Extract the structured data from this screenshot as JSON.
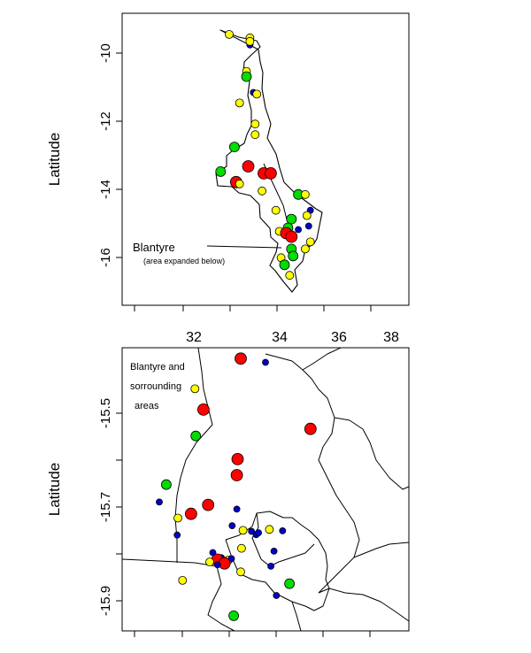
{
  "top_map": {
    "ylabel": "Latitude",
    "y_ticks": [
      "-10",
      "-12",
      "-14",
      "-16"
    ],
    "x_ticks": [
      "32",
      "34",
      "36",
      "38"
    ],
    "callout": "Blantyre",
    "callout_sub": "(area expanded below)"
  },
  "bottom_map": {
    "ylabel": "Latitude",
    "y_ticks": [
      "-15.5",
      "-15.7",
      "-15.9"
    ],
    "annotation_lines": [
      "Blantyre and",
      "sorrounding",
      "areas"
    ]
  },
  "colors": {
    "red": "#ff0000",
    "green": "#00dd00",
    "yellow": "#ffff00",
    "blue": "#0000cc"
  },
  "chart_data": [
    {
      "type": "scatter",
      "title": "",
      "xlabel": "",
      "ylabel": "Latitude",
      "xlim": [
        30.2,
        38.5
      ],
      "ylim": [
        -17.5,
        -9.2
      ],
      "x_ticks": [
        32,
        34,
        36,
        38
      ],
      "y_ticks": [
        -10,
        -12,
        -14,
        -16
      ],
      "points": [
        {
          "lon": 33.9,
          "lat": -9.9,
          "color": "yellow"
        },
        {
          "lon": 33.9,
          "lat": -10.1,
          "color": "blue"
        },
        {
          "lon": 33.9,
          "lat": -10.0,
          "color": "yellow"
        },
        {
          "lon": 33.3,
          "lat": -9.8,
          "color": "yellow"
        },
        {
          "lon": 33.8,
          "lat": -10.85,
          "color": "yellow"
        },
        {
          "lon": 33.8,
          "lat": -11.0,
          "color": "green"
        },
        {
          "lon": 34.0,
          "lat": -11.45,
          "color": "blue"
        },
        {
          "lon": 34.1,
          "lat": -11.5,
          "color": "yellow"
        },
        {
          "lon": 33.6,
          "lat": -11.75,
          "color": "yellow"
        },
        {
          "lon": 34.05,
          "lat": -12.35,
          "color": "yellow"
        },
        {
          "lon": 34.05,
          "lat": -12.65,
          "color": "yellow"
        },
        {
          "lon": 33.45,
          "lat": -13.0,
          "color": "green"
        },
        {
          "lon": 33.85,
          "lat": -13.55,
          "color": "red"
        },
        {
          "lon": 34.3,
          "lat": -13.75,
          "color": "red"
        },
        {
          "lon": 34.5,
          "lat": -13.75,
          "color": "red"
        },
        {
          "lon": 33.05,
          "lat": -13.7,
          "color": "green"
        },
        {
          "lon": 33.5,
          "lat": -14.0,
          "color": "red"
        },
        {
          "lon": 33.6,
          "lat": -14.05,
          "color": "yellow"
        },
        {
          "lon": 34.25,
          "lat": -14.25,
          "color": "yellow"
        },
        {
          "lon": 35.3,
          "lat": -14.35,
          "color": "green"
        },
        {
          "lon": 35.5,
          "lat": -14.35,
          "color": "yellow"
        },
        {
          "lon": 34.65,
          "lat": -14.8,
          "color": "yellow"
        },
        {
          "lon": 35.65,
          "lat": -14.8,
          "color": "blue"
        },
        {
          "lon": 35.55,
          "lat": -14.95,
          "color": "yellow"
        },
        {
          "lon": 35.1,
          "lat": -15.05,
          "color": "green"
        },
        {
          "lon": 35.6,
          "lat": -15.25,
          "color": "blue"
        },
        {
          "lon": 35.0,
          "lat": -15.3,
          "color": "green"
        },
        {
          "lon": 34.75,
          "lat": -15.4,
          "color": "yellow"
        },
        {
          "lon": 34.95,
          "lat": -15.45,
          "color": "red"
        },
        {
          "lon": 35.1,
          "lat": -15.55,
          "color": "red"
        },
        {
          "lon": 35.3,
          "lat": -15.35,
          "color": "blue"
        },
        {
          "lon": 35.65,
          "lat": -15.7,
          "color": "yellow"
        },
        {
          "lon": 35.5,
          "lat": -15.9,
          "color": "yellow"
        },
        {
          "lon": 35.1,
          "lat": -15.9,
          "color": "green"
        },
        {
          "lon": 35.15,
          "lat": -16.1,
          "color": "green"
        },
        {
          "lon": 34.8,
          "lat": -16.15,
          "color": "yellow"
        },
        {
          "lon": 34.9,
          "lat": -16.35,
          "color": "green"
        },
        {
          "lon": 35.05,
          "lat": -16.65,
          "color": "yellow"
        }
      ]
    },
    {
      "type": "scatter",
      "title": "",
      "xlabel": "",
      "ylabel": "Latitude",
      "xlim": [
        34.85,
        35.22
      ],
      "ylim": [
        -15.98,
        -15.38
      ],
      "y_ticks": [
        -15.5,
        -15.7,
        -15.9
      ],
      "points": [
        {
          "lon": 35.003,
          "lat": -15.403,
          "color": "red"
        },
        {
          "lon": 35.035,
          "lat": -15.411,
          "color": "blue"
        },
        {
          "lon": 34.944,
          "lat": -15.467,
          "color": "yellow"
        },
        {
          "lon": 34.955,
          "lat": -15.511,
          "color": "red"
        },
        {
          "lon": 35.093,
          "lat": -15.552,
          "color": "red"
        },
        {
          "lon": 34.945,
          "lat": -15.567,
          "color": "green"
        },
        {
          "lon": 34.999,
          "lat": -15.616,
          "color": "red"
        },
        {
          "lon": 34.998,
          "lat": -15.65,
          "color": "red"
        },
        {
          "lon": 34.907,
          "lat": -15.67,
          "color": "green"
        },
        {
          "lon": 34.961,
          "lat": -15.713,
          "color": "red"
        },
        {
          "lon": 34.939,
          "lat": -15.732,
          "color": "red"
        },
        {
          "lon": 34.898,
          "lat": -15.707,
          "color": "blue"
        },
        {
          "lon": 34.922,
          "lat": -15.741,
          "color": "yellow"
        },
        {
          "lon": 34.998,
          "lat": -15.722,
          "color": "blue"
        },
        {
          "lon": 34.921,
          "lat": -15.777,
          "color": "blue"
        },
        {
          "lon": 34.992,
          "lat": -15.757,
          "color": "blue"
        },
        {
          "lon": 35.006,
          "lat": -15.767,
          "color": "yellow"
        },
        {
          "lon": 35.017,
          "lat": -15.769,
          "color": "blue"
        },
        {
          "lon": 35.023,
          "lat": -15.776,
          "color": "blue"
        },
        {
          "lon": 35.026,
          "lat": -15.772,
          "color": "blue"
        },
        {
          "lon": 35.04,
          "lat": -15.765,
          "color": "yellow"
        },
        {
          "lon": 35.057,
          "lat": -15.768,
          "color": "blue"
        },
        {
          "lon": 35.004,
          "lat": -15.805,
          "color": "yellow"
        },
        {
          "lon": 35.046,
          "lat": -15.811,
          "color": "blue"
        },
        {
          "lon": 34.967,
          "lat": -15.814,
          "color": "blue"
        },
        {
          "lon": 34.978,
          "lat": -15.825,
          "color": "blue"
        },
        {
          "lon": 34.973,
          "lat": -15.829,
          "color": "red"
        },
        {
          "lon": 34.987,
          "lat": -15.83,
          "color": "yellow"
        },
        {
          "lon": 34.991,
          "lat": -15.827,
          "color": "blue"
        },
        {
          "lon": 34.982,
          "lat": -15.837,
          "color": "red"
        },
        {
          "lon": 34.963,
          "lat": -15.834,
          "color": "yellow"
        },
        {
          "lon": 34.973,
          "lat": -15.84,
          "color": "blue"
        },
        {
          "lon": 35.003,
          "lat": -15.855,
          "color": "yellow"
        },
        {
          "lon": 35.042,
          "lat": -15.843,
          "color": "blue"
        },
        {
          "lon": 34.928,
          "lat": -15.873,
          "color": "yellow"
        },
        {
          "lon": 35.066,
          "lat": -15.88,
          "color": "green"
        },
        {
          "lon": 35.049,
          "lat": -15.905,
          "color": "blue"
        },
        {
          "lon": 34.994,
          "lat": -15.948,
          "color": "green"
        }
      ]
    }
  ]
}
